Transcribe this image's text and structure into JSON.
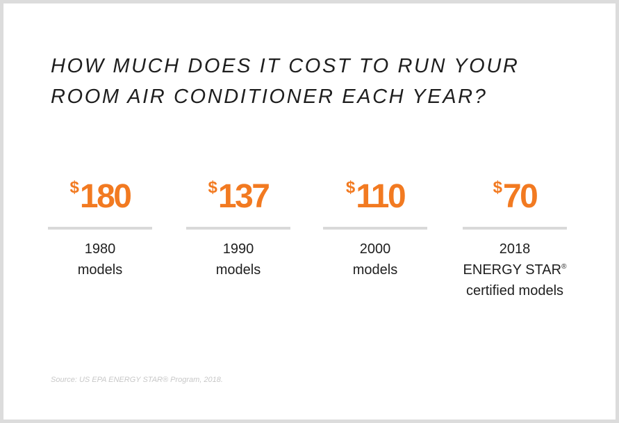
{
  "headline": {
    "line1": "HOW MUCH DOES IT COST TO RUN YOUR",
    "line2": "ROOM AIR CONDITIONER EACH YEAR?"
  },
  "stats": [
    {
      "currency": "$",
      "amount": "180",
      "label_line1": "1980",
      "label_line2": "models"
    },
    {
      "currency": "$",
      "amount": "137",
      "label_line1": "1990",
      "label_line2": "models"
    },
    {
      "currency": "$",
      "amount": "110",
      "label_line1": "2000",
      "label_line2": "models"
    },
    {
      "currency": "$",
      "amount": "70",
      "label_line1": "2018",
      "label_line2": "ENERGY STAR",
      "label_line2_mark": "®",
      "label_line3": "certified models"
    }
  ],
  "source": "Source: US EPA ENERGY STAR® Program, 2018.",
  "colors": {
    "accent": "#f27a21",
    "text": "#1e1e1e",
    "rule": "#d9d9d9",
    "border": "#dcdcdc",
    "source": "#c8c8c8"
  }
}
